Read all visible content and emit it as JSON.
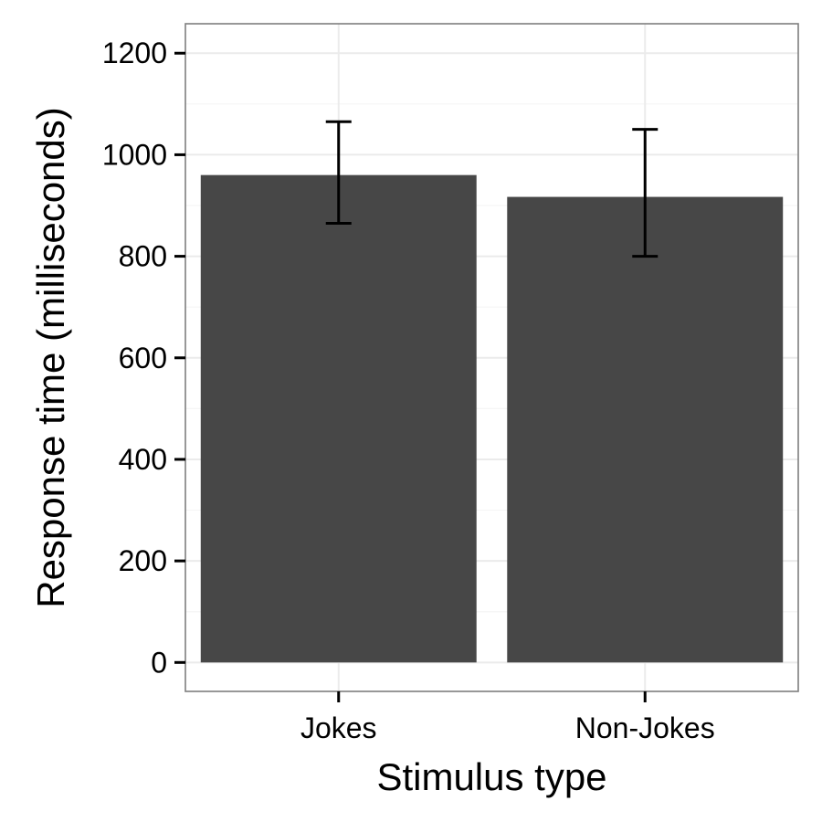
{
  "chart_data": {
    "type": "bar",
    "categories": [
      "Jokes",
      "Non-Jokes"
    ],
    "values": [
      960,
      917
    ],
    "error_bars": [
      {
        "lower": 865,
        "upper": 1065
      },
      {
        "lower": 800,
        "upper": 1050
      }
    ],
    "xlabel": "Stimulus type",
    "ylabel": "Response time (milliseconds)",
    "ylim": [
      -57,
      1258
    ],
    "yticks": [
      0,
      200,
      400,
      600,
      800,
      1000,
      1200
    ],
    "grid": true,
    "bar_color": "#474747",
    "errorbar_color": "#000000",
    "grid_color": "#ebebeb",
    "panel_border_color": "#7f7f7f"
  }
}
